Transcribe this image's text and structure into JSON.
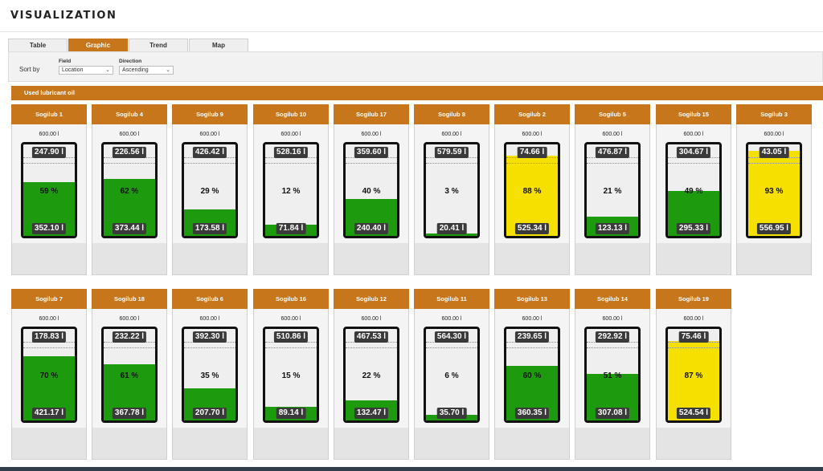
{
  "page": {
    "title": "VISUALIZATION"
  },
  "tabs": [
    {
      "label": "Table",
      "active": false
    },
    {
      "label": "Graphic",
      "active": true
    },
    {
      "label": "Trend",
      "active": false
    },
    {
      "label": "Map",
      "active": false
    }
  ],
  "toolbar": {
    "sort_by": "Sort by",
    "field_label": "Field",
    "field_value": "Location",
    "direction_label": "Direction",
    "direction_value": "Ascending"
  },
  "section": {
    "title": "Used lubricant oil"
  },
  "colors": {
    "accent": "#c8761b",
    "green": "#1e9a0f",
    "yellow": "#f5e000"
  },
  "tanks": [
    {
      "name": "Sogilub 1",
      "capacity": "600.00 l",
      "empty": "247.90 l",
      "filled": "352.10 l",
      "percent": "59 %",
      "level": 59,
      "color": "green"
    },
    {
      "name": "Sogilub 4",
      "capacity": "600.00 l",
      "empty": "226.56 l",
      "filled": "373.44 l",
      "percent": "62 %",
      "level": 62,
      "color": "green"
    },
    {
      "name": "Sogilub 9",
      "capacity": "600.00 l",
      "empty": "426.42 l",
      "filled": "173.58 l",
      "percent": "29 %",
      "level": 29,
      "color": "green"
    },
    {
      "name": "Sogilub 10",
      "capacity": "600.00 l",
      "empty": "528.16 l",
      "filled": "71.84 l",
      "percent": "12 %",
      "level": 12,
      "color": "green"
    },
    {
      "name": "Sogilub 17",
      "capacity": "600.00 l",
      "empty": "359.60 l",
      "filled": "240.40 l",
      "percent": "40 %",
      "level": 40,
      "color": "green"
    },
    {
      "name": "Sogilub 8",
      "capacity": "600.00 l",
      "empty": "579.59 l",
      "filled": "20.41 l",
      "percent": "3 %",
      "level": 3,
      "color": "green"
    },
    {
      "name": "Sogilub 2",
      "capacity": "600.00 l",
      "empty": "74.66 l",
      "filled": "525.34 l",
      "percent": "88 %",
      "level": 88,
      "color": "yellow"
    },
    {
      "name": "Sogilub 5",
      "capacity": "600.00 l",
      "empty": "476.87 l",
      "filled": "123.13 l",
      "percent": "21 %",
      "level": 21,
      "color": "green"
    },
    {
      "name": "Sogilub 15",
      "capacity": "600.00 l",
      "empty": "304.67 l",
      "filled": "295.33 l",
      "percent": "49 %",
      "level": 49,
      "color": "green"
    },
    {
      "name": "Sogilub 3",
      "capacity": "600.00 l",
      "empty": "43.05 l",
      "filled": "556.95 l",
      "percent": "93 %",
      "level": 93,
      "color": "yellow"
    },
    {
      "name": "Sogilub 7",
      "capacity": "600.00 l",
      "empty": "178.83 l",
      "filled": "421.17 l",
      "percent": "70 %",
      "level": 70,
      "color": "green"
    },
    {
      "name": "Sogilub 18",
      "capacity": "600.00 l",
      "empty": "232.22 l",
      "filled": "367.78 l",
      "percent": "61 %",
      "level": 61,
      "color": "green"
    },
    {
      "name": "Sogilub 6",
      "capacity": "600.00 l",
      "empty": "392.30 l",
      "filled": "207.70 l",
      "percent": "35 %",
      "level": 35,
      "color": "green"
    },
    {
      "name": "Sogilub 16",
      "capacity": "600.00 l",
      "empty": "510.86 l",
      "filled": "89.14 l",
      "percent": "15 %",
      "level": 15,
      "color": "green"
    },
    {
      "name": "Sogilub 12",
      "capacity": "600.00 l",
      "empty": "467.53 l",
      "filled": "132.47 l",
      "percent": "22 %",
      "level": 22,
      "color": "green"
    },
    {
      "name": "Sogilub 11",
      "capacity": "600.00 l",
      "empty": "564.30 l",
      "filled": "35.70 l",
      "percent": "6 %",
      "level": 6,
      "color": "green"
    },
    {
      "name": "Sogilub 13",
      "capacity": "600.00 l",
      "empty": "239.65 l",
      "filled": "360.35 l",
      "percent": "60 %",
      "level": 60,
      "color": "green"
    },
    {
      "name": "Sogilub 14",
      "capacity": "600.00 l",
      "empty": "292.92 l",
      "filled": "307.08 l",
      "percent": "51 %",
      "level": 51,
      "color": "green"
    },
    {
      "name": "Sogilub 19",
      "capacity": "600.00 l",
      "empty": "75.46 l",
      "filled": "524.54 l",
      "percent": "87 %",
      "level": 87,
      "color": "yellow"
    }
  ]
}
